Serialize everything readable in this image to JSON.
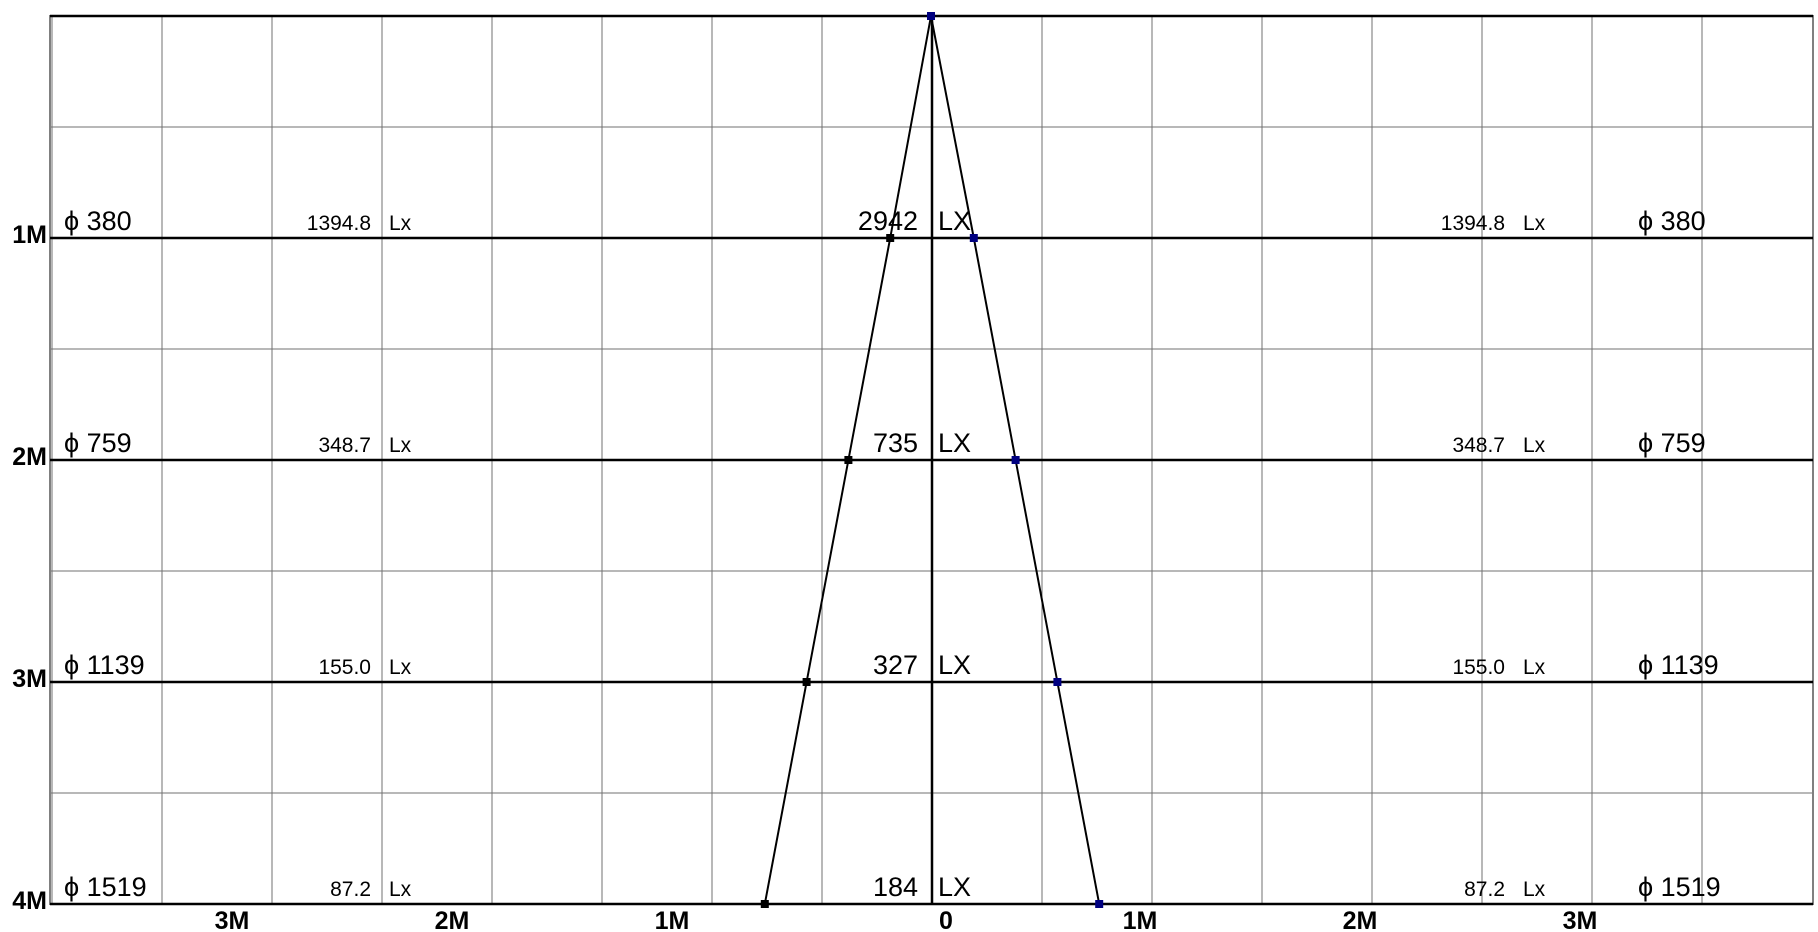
{
  "chart_data": {
    "type": "line",
    "title": "",
    "xlabel": "",
    "ylabel": "",
    "x_ticks": [
      {
        "value": -3,
        "label": "3M"
      },
      {
        "value": -2,
        "label": "2M"
      },
      {
        "value": -1,
        "label": "1M"
      },
      {
        "value": 0,
        "label": "0"
      },
      {
        "value": 1,
        "label": "1M"
      },
      {
        "value": 2,
        "label": "2M"
      },
      {
        "value": 3,
        "label": "3M"
      }
    ],
    "xlim": [
      -4.0,
      4.0
    ],
    "ylim": [
      0,
      4
    ],
    "levels": [
      {
        "distance": 1,
        "label": "1M",
        "diameter_label": "ϕ 380",
        "center_lux": "2942",
        "center_unit": "LX",
        "side_lux": "1394.8",
        "side_unit": "Lx",
        "half_width": 0.19
      },
      {
        "distance": 2,
        "label": "2M",
        "diameter_label": "ϕ 759",
        "center_lux": "735",
        "center_unit": "LX",
        "side_lux": "348.7",
        "side_unit": "Lx",
        "half_width": 0.38
      },
      {
        "distance": 3,
        "label": "3M",
        "diameter_label": "ϕ 1139",
        "center_lux": "327",
        "center_unit": "LX",
        "side_lux": "155.0",
        "side_unit": "Lx",
        "half_width": 0.57
      },
      {
        "distance": 4,
        "label": "4M",
        "diameter_label": "ϕ 1519",
        "center_lux": "184",
        "center_unit": "LX",
        "side_lux": "87.2",
        "side_unit": "Lx",
        "half_width": 0.76
      }
    ],
    "grid": true,
    "colors": {
      "grid": "#707070",
      "lines": "#000000",
      "marker_left": "#000000",
      "marker_right": "#000080"
    }
  }
}
